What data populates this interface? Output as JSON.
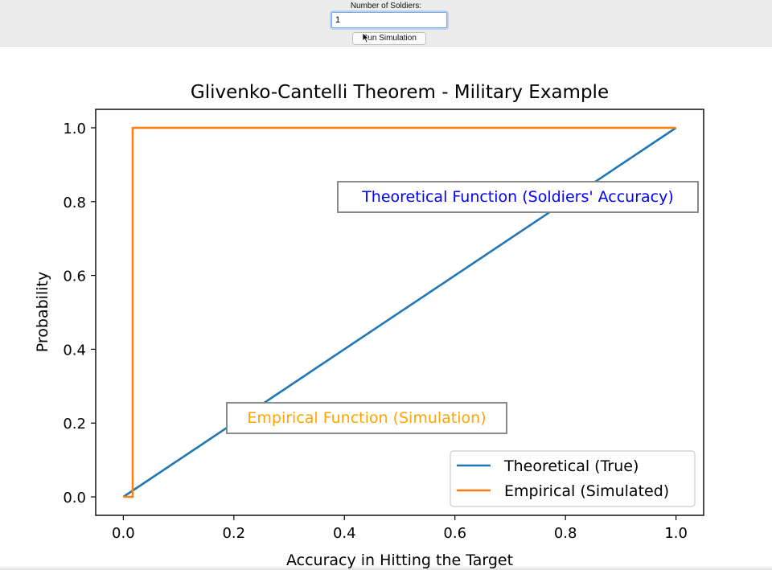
{
  "controls": {
    "soldiers_label": "Number of Soldiers:",
    "soldiers_value": "1",
    "run_button_label": "Run Simulation",
    "cursor_icon": "arrow-cursor-icon"
  },
  "chart_data": {
    "type": "line",
    "title": "Glivenko-Cantelli Theorem - Military Example",
    "xlabel": "Accuracy in Hitting the Target",
    "ylabel": "Probability",
    "xlim": [
      -0.05,
      1.05
    ],
    "ylim": [
      -0.05,
      1.05
    ],
    "xticks": [
      "0.0",
      "0.2",
      "0.4",
      "0.6",
      "0.8",
      "1.0"
    ],
    "yticks": [
      "0.0",
      "0.2",
      "0.4",
      "0.6",
      "0.8",
      "1.0"
    ],
    "grid": false,
    "legend_position": "bottom-right",
    "series": [
      {
        "name": "Theoretical (True)",
        "color": "#1f77b4",
        "x": [
          0.0,
          1.0
        ],
        "y": [
          0.0,
          1.0
        ]
      },
      {
        "name": "Empirical (Simulated)",
        "color": "#ff7f0e",
        "step": true,
        "x": [
          0.0,
          0.017,
          0.017,
          1.0
        ],
        "y": [
          0.0,
          0.0,
          1.0,
          1.0
        ]
      }
    ],
    "annotations": [
      {
        "text": "Theoretical Function (Soldiers' Accuracy)",
        "color": "#0000ff",
        "x": 0.4,
        "y": 0.81
      },
      {
        "text": "Empirical Function (Simulation)",
        "color": "#ffa500",
        "x": 0.2,
        "y": 0.21
      }
    ]
  }
}
